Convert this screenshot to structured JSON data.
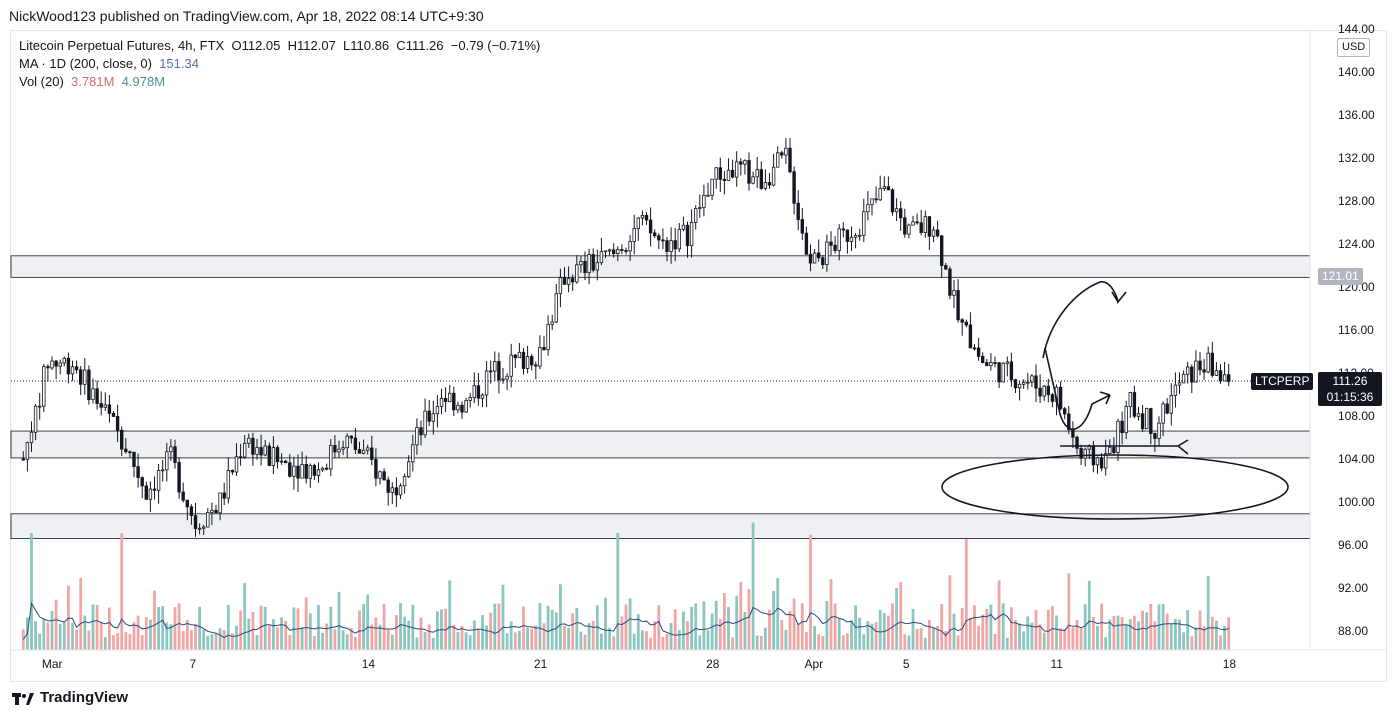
{
  "header": {
    "publisher": "NickWood123 published on TradingView.com, Apr 18, 2022 08:14 UTC+9:30"
  },
  "legend": {
    "symbol": "Litecoin Perpetual Futures, 4h, FTX",
    "ohlc": {
      "O": "112.05",
      "H": "112.07",
      "L": "110.86",
      "C": "111.26",
      "change": "−0.79 (−0.71%)"
    },
    "ma_label": "MA · 1D (200, close, 0)",
    "ma_value": "151.34",
    "vol_label": "Vol (20)",
    "vol_value_1": "3.781M",
    "vol_value_2": "4.978M"
  },
  "price_axis": {
    "currency": "USD",
    "ticks": [
      "144.00",
      "140.00",
      "136.00",
      "132.00",
      "128.00",
      "124.00",
      "120.00",
      "116.00",
      "112.00",
      "108.00",
      "104.00",
      "100.00",
      "96.00",
      "92.00",
      "88.00"
    ],
    "resistance_tag": "121.01",
    "symbol_tag": "LTCPERP",
    "last_price": "111.26",
    "countdown": "01:15:36"
  },
  "time_axis": {
    "ticks": [
      "Mar",
      "7",
      "14",
      "21",
      "28",
      "Apr",
      "5",
      "11",
      "18"
    ]
  },
  "footer": {
    "brand": "TradingView"
  },
  "chart_data": {
    "type": "candlestick",
    "interval": "4h",
    "y_range": [
      86,
      146
    ],
    "zones": [
      {
        "low": 120.9,
        "high": 122.9
      },
      {
        "low": 104.1,
        "high": 106.6
      },
      {
        "low": 96.6,
        "high": 98.9
      }
    ],
    "last_price_line": 111.26,
    "colors": {
      "up": "#26a69a",
      "down": "#ef5350",
      "candle": "#131722",
      "zone": "#e0e3eb",
      "ma": "#2a4a7f"
    },
    "price_path": [
      {
        "date": "2022-02-28",
        "price": 104
      },
      {
        "date": "2022-03-01",
        "price": 113
      },
      {
        "date": "2022-03-02",
        "price": 113
      },
      {
        "date": "2022-03-04",
        "price": 106
      },
      {
        "date": "2022-03-05",
        "price": 101
      },
      {
        "date": "2022-03-06",
        "price": 104
      },
      {
        "date": "2022-03-07",
        "price": 98
      },
      {
        "date": "2022-03-08",
        "price": 100
      },
      {
        "date": "2022-03-09",
        "price": 106
      },
      {
        "date": "2022-03-10",
        "price": 104
      },
      {
        "date": "2022-03-12",
        "price": 103
      },
      {
        "date": "2022-03-13",
        "price": 106
      },
      {
        "date": "2022-03-14",
        "price": 104
      },
      {
        "date": "2022-03-15",
        "price": 101
      },
      {
        "date": "2022-03-16",
        "price": 106
      },
      {
        "date": "2022-03-17",
        "price": 110
      },
      {
        "date": "2022-03-18",
        "price": 109
      },
      {
        "date": "2022-03-19",
        "price": 112
      },
      {
        "date": "2022-03-21",
        "price": 114
      },
      {
        "date": "2022-03-22",
        "price": 121
      },
      {
        "date": "2022-03-24",
        "price": 123
      },
      {
        "date": "2022-03-25",
        "price": 126
      },
      {
        "date": "2022-03-26",
        "price": 124
      },
      {
        "date": "2022-03-27",
        "price": 125
      },
      {
        "date": "2022-03-28",
        "price": 130
      },
      {
        "date": "2022-03-29",
        "price": 131
      },
      {
        "date": "2022-03-30",
        "price": 130
      },
      {
        "date": "2022-03-31",
        "price": 132
      },
      {
        "date": "2022-04-01",
        "price": 122
      },
      {
        "date": "2022-04-02",
        "price": 124
      },
      {
        "date": "2022-04-03",
        "price": 126
      },
      {
        "date": "2022-04-04",
        "price": 129
      },
      {
        "date": "2022-04-05",
        "price": 125
      },
      {
        "date": "2022-04-06",
        "price": 126
      },
      {
        "date": "2022-04-07",
        "price": 117
      },
      {
        "date": "2022-04-08",
        "price": 113
      },
      {
        "date": "2022-04-09",
        "price": 112
      },
      {
        "date": "2022-04-10",
        "price": 111
      },
      {
        "date": "2022-04-11",
        "price": 110
      },
      {
        "date": "2022-04-12",
        "price": 104
      },
      {
        "date": "2022-04-13",
        "price": 104
      },
      {
        "date": "2022-04-14",
        "price": 109
      },
      {
        "date": "2022-04-15",
        "price": 107
      },
      {
        "date": "2022-04-16",
        "price": 111
      },
      {
        "date": "2022-04-17",
        "price": 113
      },
      {
        "date": "2022-04-18",
        "price": 111.26
      }
    ]
  }
}
